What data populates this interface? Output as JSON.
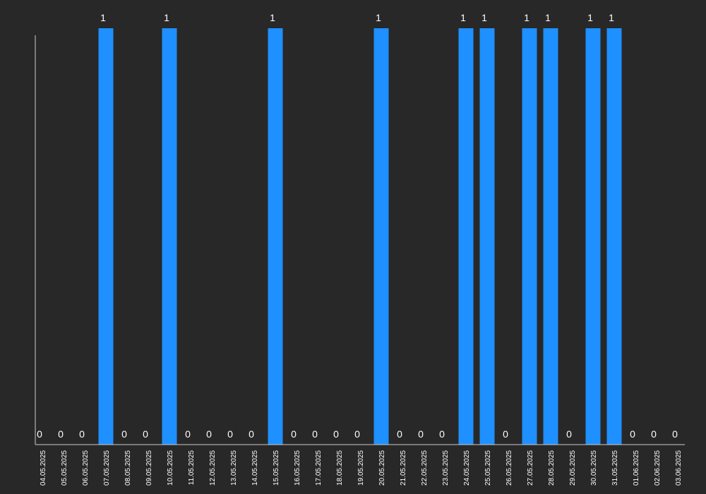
{
  "chart_data": {
    "type": "bar",
    "title": "",
    "xlabel": "",
    "ylabel": "",
    "ylim": [
      0,
      1
    ],
    "grid": false,
    "legend": "none",
    "bar_color": "#1e90ff",
    "background_color": "#282828",
    "axis_color": "#cccccc",
    "text_color": "#ffffff",
    "categories": [
      "04.05.2025",
      "05.05.2025",
      "06.05.2025",
      "07.05.2025",
      "08.05.2025",
      "09.05.2025",
      "10.05.2025",
      "11.05.2025",
      "12.05.2025",
      "13.05.2025",
      "14.05.2025",
      "15.05.2025",
      "16.05.2025",
      "17.05.2025",
      "18.05.2025",
      "19.05.2025",
      "20.05.2025",
      "21.05.2025",
      "22.05.2025",
      "23.05.2025",
      "24.05.2025",
      "25.05.2025",
      "26.05.2025",
      "27.05.2025",
      "28.05.2025",
      "29.05.2025",
      "30.05.2025",
      "31.05.2025",
      "01.06.2025",
      "02.06.2025",
      "03.06.2025"
    ],
    "values": [
      0,
      0,
      0,
      1,
      0,
      0,
      1,
      0,
      0,
      0,
      0,
      1,
      0,
      0,
      0,
      0,
      1,
      0,
      0,
      0,
      1,
      1,
      0,
      1,
      1,
      0,
      1,
      1,
      0,
      0,
      0
    ]
  }
}
